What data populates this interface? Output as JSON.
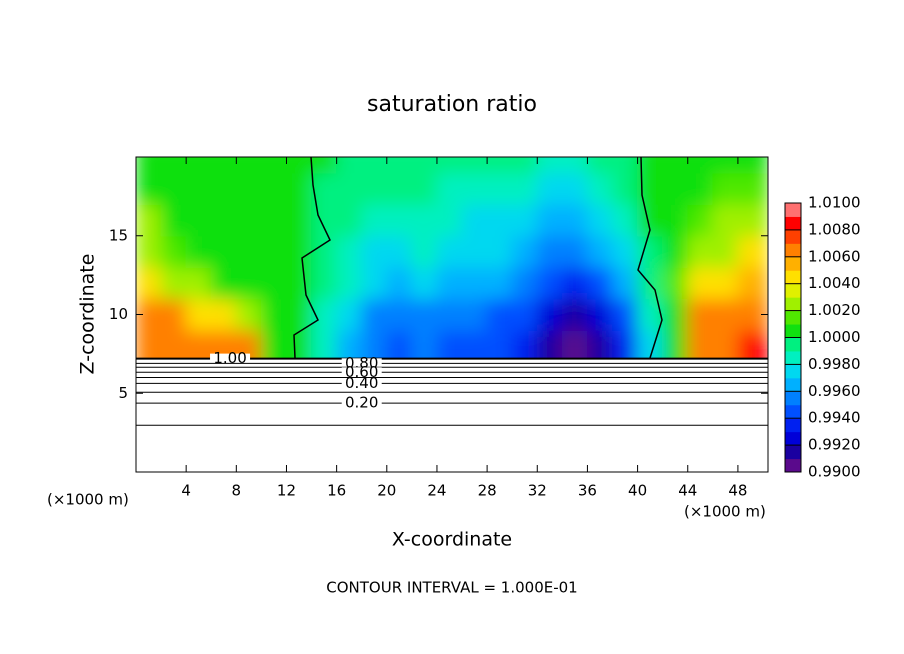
{
  "chart_data": {
    "type": "contour",
    "title": "saturation ratio",
    "x_label": "X-coordinate",
    "y_label": "Z-coordinate",
    "x_unit_label": "(×1000 m)",
    "y_unit_label": "(×1000 m)",
    "footer": "CONTOUR INTERVAL = 1.000E-01",
    "xlim": [
      0,
      50.4
    ],
    "ylim": [
      0,
      20
    ],
    "xticks": [
      4,
      8,
      12,
      16,
      20,
      24,
      28,
      32,
      36,
      40,
      44,
      48
    ],
    "yticks": [
      5,
      10,
      15
    ],
    "x": [
      1,
      3,
      5,
      7,
      9,
      11,
      13,
      15,
      17,
      19,
      21,
      23,
      25,
      27,
      29,
      31,
      33,
      35,
      37,
      39,
      41,
      43,
      45,
      47,
      49
    ],
    "y": [
      8,
      10,
      12,
      14,
      16,
      18,
      20
    ],
    "values": [
      [
        1.007,
        1.007,
        1.0068,
        1.0066,
        1.006,
        1.001,
        1.0,
        0.998,
        0.996,
        0.995,
        0.9945,
        0.995,
        0.9945,
        0.9945,
        0.994,
        0.9935,
        0.9915,
        0.9905,
        0.9915,
        0.9935,
        0.9975,
        1.0005,
        1.007,
        1.007,
        1.008
      ],
      [
        1.0065,
        1.006,
        1.005,
        1.004,
        1.003,
        1.001,
        1.0003,
        0.9985,
        0.997,
        0.9955,
        0.995,
        0.9955,
        0.995,
        0.9955,
        0.9945,
        0.994,
        0.992,
        0.9915,
        0.9925,
        0.9945,
        0.9985,
        1.001,
        1.006,
        1.0065,
        1.007
      ],
      [
        1.004,
        1.003,
        1.002,
        1.001,
        1.0007,
        1.0005,
        1.0002,
        0.9992,
        0.998,
        0.997,
        0.996,
        0.997,
        0.9965,
        0.9965,
        0.996,
        0.9955,
        0.994,
        0.9935,
        0.9945,
        0.996,
        0.9995,
        1.0012,
        1.004,
        1.005,
        1.0055
      ],
      [
        1.003,
        1.0015,
        1.0008,
        1.0005,
        1.0004,
        1.0003,
        1.0002,
        0.9996,
        0.9988,
        0.9975,
        0.9972,
        0.998,
        0.9975,
        0.997,
        0.997,
        0.9965,
        0.9955,
        0.995,
        0.996,
        0.9975,
        0.9999,
        1.0008,
        1.0025,
        1.003,
        1.004
      ],
      [
        1.002,
        1.001,
        1.0005,
        1.0004,
        1.0003,
        1.0003,
        1.0002,
        0.9999,
        0.9994,
        0.9985,
        0.9982,
        0.9985,
        0.998,
        0.9978,
        0.9975,
        0.997,
        0.9965,
        0.9962,
        0.997,
        0.9985,
        1.0001,
        1.0006,
        1.0015,
        1.002,
        1.0025
      ],
      [
        1.001,
        1.0005,
        1.0004,
        1.0004,
        1.0003,
        1.0003,
        1.0001,
        0.9999,
        0.9998,
        0.9992,
        0.999,
        0.999,
        0.9988,
        0.9986,
        0.9985,
        0.9982,
        0.9978,
        0.9975,
        0.998,
        0.9992,
        1.0002,
        1.0004,
        1.0008,
        1.0012,
        1.0015
      ],
      [
        1.0005,
        1.0004,
        1.0004,
        1.0004,
        1.0003,
        1.0002,
        1.0002,
        1.0,
        0.9999,
        0.9996,
        0.9995,
        0.9995,
        0.9994,
        0.9993,
        0.9992,
        0.999,
        0.9988,
        0.9986,
        0.999,
        0.9997,
        1.0002,
        1.0003,
        1.0005,
        1.0008,
        1.001
      ]
    ],
    "clim": [
      0.99,
      1.01
    ],
    "colormap": [
      "#5a0a8c",
      "#1a00a0",
      "#0000d8",
      "#0020f0",
      "#0050ff",
      "#0080ff",
      "#00b0ff",
      "#00d8f0",
      "#00f0c0",
      "#00f080",
      "#10e010",
      "#50e800",
      "#a0f000",
      "#e0f000",
      "#ffe000",
      "#ffb000",
      "#ff8000",
      "#ff4000",
      "#ff0000",
      "#ff7070"
    ],
    "colorbar_ticks": [
      {
        "value": 0.99,
        "label": "0.9900"
      },
      {
        "value": 0.992,
        "label": "0.9920"
      },
      {
        "value": 0.994,
        "label": "0.9940"
      },
      {
        "value": 0.996,
        "label": "0.9960"
      },
      {
        "value": 0.998,
        "label": "0.9980"
      },
      {
        "value": 1.0,
        "label": "1.0000"
      },
      {
        "value": 1.002,
        "label": "1.0020"
      },
      {
        "value": 1.004,
        "label": "1.0040"
      },
      {
        "value": 1.006,
        "label": "1.0060"
      },
      {
        "value": 1.008,
        "label": "1.0080"
      },
      {
        "value": 1.01,
        "label": "1.0100"
      }
    ],
    "contours": [
      {
        "z": 7.2,
        "label": "1.00"
      },
      {
        "z": 6.9,
        "label": "0.80"
      },
      {
        "z": 6.65
      },
      {
        "z": 6.33,
        "label": "0.60"
      },
      {
        "z": 6.0
      },
      {
        "z": 5.63,
        "label": "0.40"
      },
      {
        "z": 5.06
      },
      {
        "z": 4.37,
        "label": "0.20"
      },
      {
        "z": 2.97
      }
    ]
  }
}
